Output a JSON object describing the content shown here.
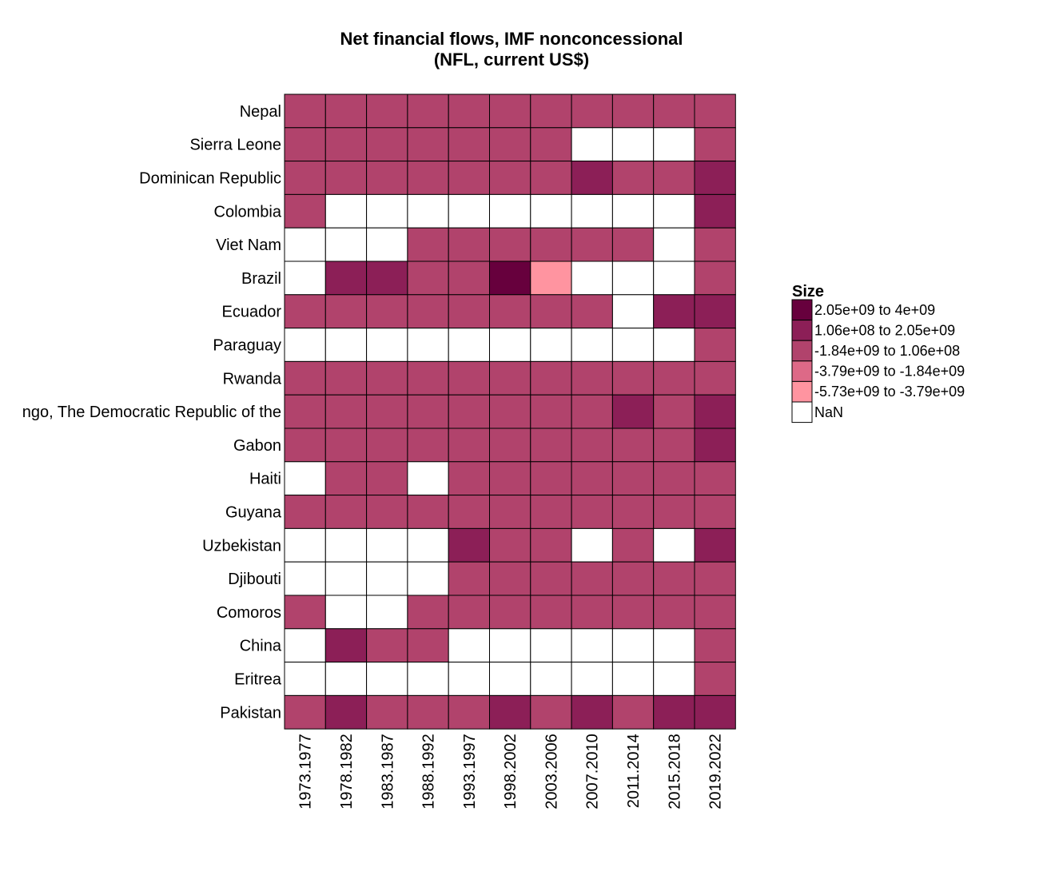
{
  "chart_data": {
    "type": "heatmap",
    "title": "Net financial flows, IMF nonconcessional",
    "subtitle": "(NFL, current US$)",
    "x": [
      "1973.1977",
      "1978.1982",
      "1983.1987",
      "1988.1992",
      "1993.1997",
      "1998.2002",
      "2003.2006",
      "2007.2010",
      "2011.2014",
      "2015.2018",
      "2019.2022"
    ],
    "y": [
      "Nepal",
      "Sierra Leone",
      "Dominican Republic",
      "Colombia",
      "Viet Nam",
      "Brazil",
      "Ecuador",
      "Paraguay",
      "Rwanda",
      "ngo, The Democratic Republic of the",
      "Gabon",
      "Haiti",
      "Guyana",
      "Uzbekistan",
      "Djibouti",
      "Comoros",
      "China",
      "Eritrea",
      "Pakistan"
    ],
    "legend": {
      "title": "Size",
      "position": "right",
      "bins": [
        {
          "label": "2.05e+09 to 4e+09",
          "color": "#67003d"
        },
        {
          "label": "1.06e+08 to 2.05e+09",
          "color": "#8c1f57"
        },
        {
          "label": "-1.84e+09 to 1.06e+08",
          "color": "#b1436c"
        },
        {
          "label": "-3.79e+09 to -1.84e+09",
          "color": "#dd6987"
        },
        {
          "label": "-5.73e+09 to -3.79e+09",
          "color": "#ff94a0"
        },
        {
          "label": "NaN",
          "color": "#ffffff"
        }
      ]
    },
    "cells": [
      [
        2,
        2,
        2,
        2,
        2,
        2,
        2,
        2,
        2,
        2,
        2
      ],
      [
        2,
        2,
        2,
        2,
        2,
        2,
        2,
        5,
        5,
        5,
        2
      ],
      [
        2,
        2,
        2,
        2,
        2,
        2,
        2,
        1,
        2,
        2,
        1
      ],
      [
        2,
        5,
        5,
        5,
        5,
        5,
        5,
        5,
        5,
        5,
        1
      ],
      [
        5,
        5,
        5,
        2,
        2,
        2,
        2,
        2,
        2,
        5,
        2
      ],
      [
        5,
        1,
        1,
        2,
        2,
        0,
        4,
        5,
        5,
        5,
        2
      ],
      [
        2,
        2,
        2,
        2,
        2,
        2,
        2,
        2,
        5,
        1,
        1
      ],
      [
        5,
        5,
        5,
        5,
        5,
        5,
        5,
        5,
        5,
        5,
        2
      ],
      [
        2,
        2,
        2,
        2,
        2,
        2,
        2,
        2,
        2,
        2,
        2
      ],
      [
        2,
        2,
        2,
        2,
        2,
        2,
        2,
        2,
        1,
        2,
        1
      ],
      [
        2,
        2,
        2,
        2,
        2,
        2,
        2,
        2,
        2,
        2,
        1
      ],
      [
        5,
        2,
        2,
        5,
        2,
        2,
        2,
        2,
        2,
        2,
        2
      ],
      [
        2,
        2,
        2,
        2,
        2,
        2,
        2,
        2,
        2,
        2,
        2
      ],
      [
        5,
        5,
        5,
        5,
        1,
        2,
        2,
        5,
        2,
        5,
        1
      ],
      [
        5,
        5,
        5,
        5,
        2,
        2,
        2,
        2,
        2,
        2,
        2
      ],
      [
        2,
        5,
        5,
        2,
        2,
        2,
        2,
        2,
        2,
        2,
        2
      ],
      [
        5,
        1,
        2,
        2,
        5,
        5,
        5,
        5,
        5,
        5,
        2
      ],
      [
        5,
        5,
        5,
        5,
        5,
        5,
        5,
        5,
        5,
        5,
        2
      ],
      [
        2,
        1,
        2,
        2,
        2,
        1,
        2,
        1,
        2,
        1,
        1
      ]
    ]
  }
}
